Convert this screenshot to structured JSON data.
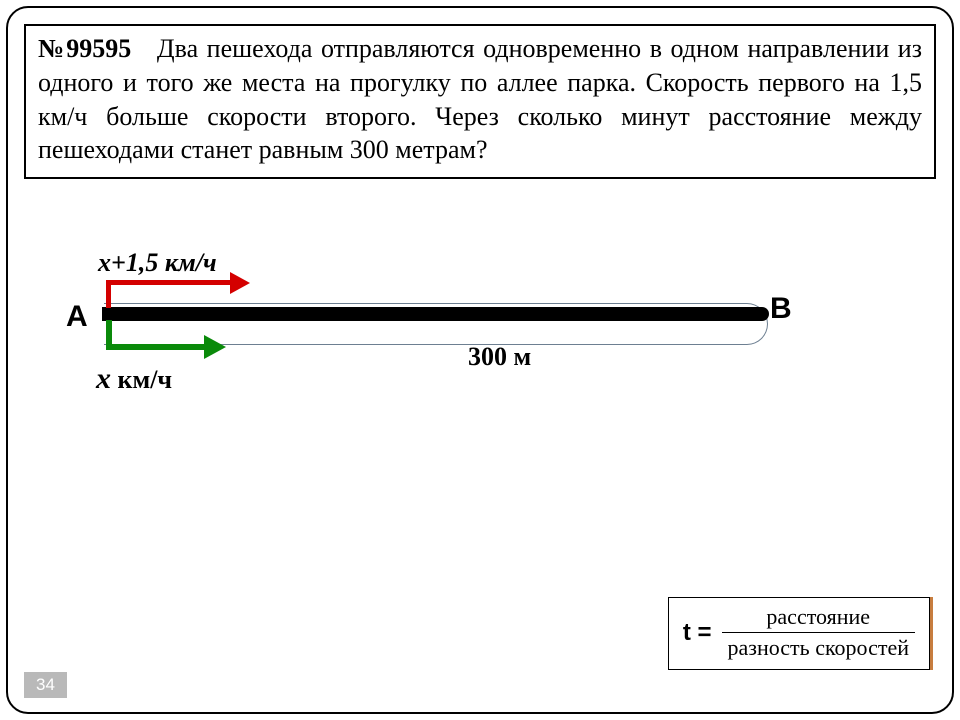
{
  "problem": {
    "number": "№99595",
    "text": "Два пешехода отправляются одновременно в одном направлении из одного и того же места на прогулку по аллее парка. Скорость первого на 1,5 км/ч больше скорости второго. Через сколько минут расстояние между пешеходами станет равным 300 метрам?"
  },
  "diagram": {
    "point_a": "А",
    "point_b": "В",
    "speed_fast": "х+1,5 км/ч",
    "speed_slow_var": "х",
    "speed_slow_unit": " км/ч",
    "distance": "300 м",
    "colors": {
      "arrow_fast": "#d40000",
      "arrow_slow": "#0a8a0a",
      "track": "#000000",
      "loop": "#6d7f91"
    }
  },
  "formula": {
    "lhs": "t =",
    "numerator": "расстояние",
    "denominator": "разность скоростей"
  },
  "page_number": "34"
}
